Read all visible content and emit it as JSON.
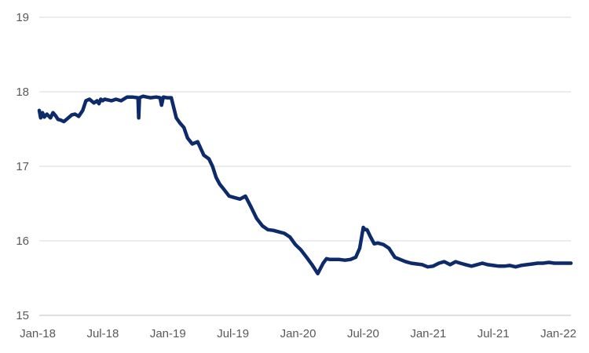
{
  "chart_data": {
    "type": "line",
    "title": "",
    "xlabel": "",
    "ylabel": "",
    "ylim": [
      15,
      19
    ],
    "yticks": [
      "15",
      "16",
      "17",
      "18",
      "19"
    ],
    "xticks": [
      "Jan-18",
      "Jul-18",
      "Jan-19",
      "Jul-19",
      "Jan-20",
      "Jul-20",
      "Jan-21",
      "Jul-21",
      "Jan-22"
    ],
    "grid": "horizontal",
    "legend": "none",
    "line_color": "#0d2a6b",
    "grid_color": "#d9d9d9",
    "series": [
      {
        "x": [
          "2018-01-01",
          "2018-01-05",
          "2018-01-10",
          "2018-01-15",
          "2018-01-22",
          "2018-02-01",
          "2018-02-08",
          "2018-02-15",
          "2018-02-22",
          "2018-03-01",
          "2018-03-10",
          "2018-03-20",
          "2018-04-01",
          "2018-04-10",
          "2018-04-20",
          "2018-05-01",
          "2018-05-10",
          "2018-05-20",
          "2018-06-01",
          "2018-06-10",
          "2018-06-15",
          "2018-06-20",
          "2018-06-25",
          "2018-07-01",
          "2018-07-10",
          "2018-07-20",
          "2018-08-01",
          "2018-08-15",
          "2018-09-01",
          "2018-09-15",
          "2018-10-01",
          "2018-10-03",
          "2018-10-05",
          "2018-10-15",
          "2018-10-25",
          "2018-11-05",
          "2018-11-20",
          "2018-12-01",
          "2018-12-05",
          "2018-12-10",
          "2018-12-20",
          "2019-01-01",
          "2019-01-15",
          "2019-01-25",
          "2019-02-05",
          "2019-02-15",
          "2019-02-28",
          "2019-03-15",
          "2019-04-01",
          "2019-04-15",
          "2019-04-25",
          "2019-05-05",
          "2019-05-15",
          "2019-05-25",
          "2019-06-10",
          "2019-06-25",
          "2019-07-10",
          "2019-07-25",
          "2019-08-10",
          "2019-08-25",
          "2019-09-10",
          "2019-09-25",
          "2019-10-10",
          "2019-10-25",
          "2019-11-10",
          "2019-11-25",
          "2019-12-10",
          "2019-12-25",
          "2020-01-10",
          "2020-01-25",
          "2020-02-10",
          "2020-02-25",
          "2020-03-05",
          "2020-03-15",
          "2020-03-25",
          "2020-04-10",
          "2020-04-25",
          "2020-05-10",
          "2020-05-25",
          "2020-06-05",
          "2020-06-15",
          "2020-06-20",
          "2020-06-25",
          "2020-07-05",
          "2020-07-15",
          "2020-07-25",
          "2020-08-10",
          "2020-08-25",
          "2020-09-10",
          "2020-09-25",
          "2020-10-10",
          "2020-10-25",
          "2020-11-10",
          "2020-11-25",
          "2020-12-10",
          "2020-12-25",
          "2021-01-10",
          "2021-01-25",
          "2021-02-10",
          "2021-02-25",
          "2021-03-10",
          "2021-03-25",
          "2021-04-10",
          "2021-04-25",
          "2021-05-10",
          "2021-05-25",
          "2021-06-10",
          "2021-06-25",
          "2021-07-10",
          "2021-07-25",
          "2021-08-10",
          "2021-08-25",
          "2021-09-10",
          "2021-09-25",
          "2021-10-10",
          "2021-10-25",
          "2021-11-10",
          "2021-11-25",
          "2021-12-10",
          "2021-12-25",
          "2022-01-10"
        ],
        "y": [
          17.75,
          17.65,
          17.72,
          17.66,
          17.7,
          17.65,
          17.72,
          17.68,
          17.63,
          17.62,
          17.6,
          17.64,
          17.69,
          17.7,
          17.67,
          17.75,
          17.88,
          17.9,
          17.85,
          17.88,
          17.84,
          17.9,
          17.88,
          17.9,
          17.89,
          17.88,
          17.9,
          17.88,
          17.93,
          17.93,
          17.92,
          17.65,
          17.92,
          17.94,
          17.93,
          17.92,
          17.93,
          17.92,
          17.82,
          17.93,
          17.92,
          17.92,
          17.65,
          17.58,
          17.52,
          17.38,
          17.3,
          17.33,
          17.15,
          17.1,
          17.0,
          16.85,
          16.76,
          16.7,
          16.6,
          16.58,
          16.56,
          16.6,
          16.45,
          16.3,
          16.2,
          16.15,
          16.14,
          16.12,
          16.1,
          16.05,
          15.95,
          15.88,
          15.78,
          15.68,
          15.56,
          15.7,
          15.76,
          15.75,
          15.75,
          15.75,
          15.74,
          15.75,
          15.78,
          15.9,
          16.18,
          16.15,
          16.15,
          16.05,
          15.96,
          15.97,
          15.95,
          15.9,
          15.78,
          15.75,
          15.72,
          15.7,
          15.69,
          15.68,
          15.65,
          15.66,
          15.7,
          15.72,
          15.68,
          15.72,
          15.7,
          15.68,
          15.66,
          15.68,
          15.7,
          15.68,
          15.67,
          15.66,
          15.66,
          15.67,
          15.65,
          15.67,
          15.68,
          15.69,
          15.7,
          15.7,
          15.71,
          15.7,
          15.7,
          15.7,
          15.7
        ]
      }
    ]
  }
}
